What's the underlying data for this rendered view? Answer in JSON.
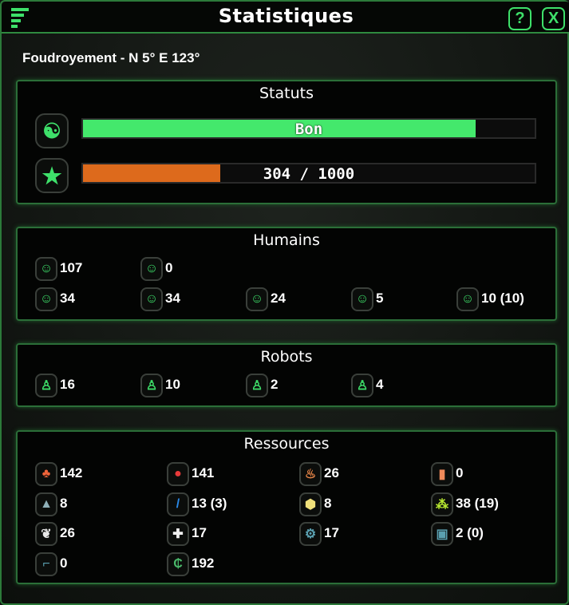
{
  "window": {
    "title": "Statistiques",
    "help": "?",
    "close": "X"
  },
  "location": "Foudroyement - N 5° E 123°",
  "statuts": {
    "title": "Statuts",
    "mood": {
      "label": "Bon",
      "fraction": 0.87,
      "color": "#44e86c",
      "icon": "yin-yang-icon"
    },
    "xp": {
      "label": "304 / 1000",
      "fraction": 0.304,
      "color": "#dd6a1c",
      "icon": "star-icon"
    }
  },
  "humains": {
    "title": "Humains",
    "items": [
      {
        "icon": "person-icon",
        "value": "107",
        "color": "#3ee06a"
      },
      {
        "icon": "masked-person-icon",
        "value": "0",
        "color": "#3ee06a"
      },
      {
        "icon": "worker-helmet-icon",
        "value": "34",
        "color": "#3ee06a"
      },
      {
        "icon": "goggles-person-icon",
        "value": "34",
        "color": "#3ee06a"
      },
      {
        "icon": "rotate-person-icon",
        "value": "24",
        "color": "#3ee06a"
      },
      {
        "icon": "soldier-icon",
        "value": "5",
        "color": "#3ee06a"
      },
      {
        "icon": "hooded-person-icon",
        "value": "10 (10)",
        "color": "#3ee06a"
      }
    ]
  },
  "robots": {
    "title": "Robots",
    "items": [
      {
        "icon": "robot-icon",
        "value": "16"
      },
      {
        "icon": "robot-arms-icon",
        "value": "10"
      },
      {
        "icon": "robot-tool-icon",
        "value": "2"
      },
      {
        "icon": "robot-combat-icon",
        "value": "4"
      }
    ]
  },
  "ressources": {
    "title": "Ressources",
    "items": [
      {
        "icon": "vegetables-icon",
        "value": "142",
        "color": "#f0643a",
        "glyph": "♣"
      },
      {
        "icon": "meat-icon",
        "value": "141",
        "color": "#e83a3a",
        "glyph": "●"
      },
      {
        "icon": "hot-meal-icon",
        "value": "26",
        "color": "#f08a4a",
        "glyph": "♨"
      },
      {
        "icon": "beer-icon",
        "value": "0",
        "color": "#f08a5a",
        "glyph": "▮"
      },
      {
        "icon": "stone-icon",
        "value": "8",
        "color": "#8fb0b8",
        "glyph": "▲"
      },
      {
        "icon": "metal-bar-icon",
        "value": "13 (3)",
        "color": "#2a8ae8",
        "glyph": "/"
      },
      {
        "icon": "gold-hexagon-icon",
        "value": "8",
        "color": "#f0e07a",
        "glyph": "⬢"
      },
      {
        "icon": "crystals-icon",
        "value": "38 (19)",
        "color": "#b8e830",
        "glyph": "⁂"
      },
      {
        "icon": "leaf-icon",
        "value": "26",
        "color": "#e8e8e8",
        "glyph": "❦"
      },
      {
        "icon": "medical-cross-icon",
        "value": "17",
        "color": "#f0f0f0",
        "glyph": "✚"
      },
      {
        "icon": "gears-icon",
        "value": "17",
        "color": "#5aa0b0",
        "glyph": "⚙"
      },
      {
        "icon": "chip-icon",
        "value": "2 (0)",
        "color": "#5aa0b0",
        "glyph": "▣"
      },
      {
        "icon": "gun-icon",
        "value": "0",
        "color": "#5aa0b0",
        "glyph": "⌐"
      },
      {
        "icon": "credits-icon",
        "value": "192",
        "color": "#4ab86a",
        "glyph": "₵"
      }
    ]
  }
}
